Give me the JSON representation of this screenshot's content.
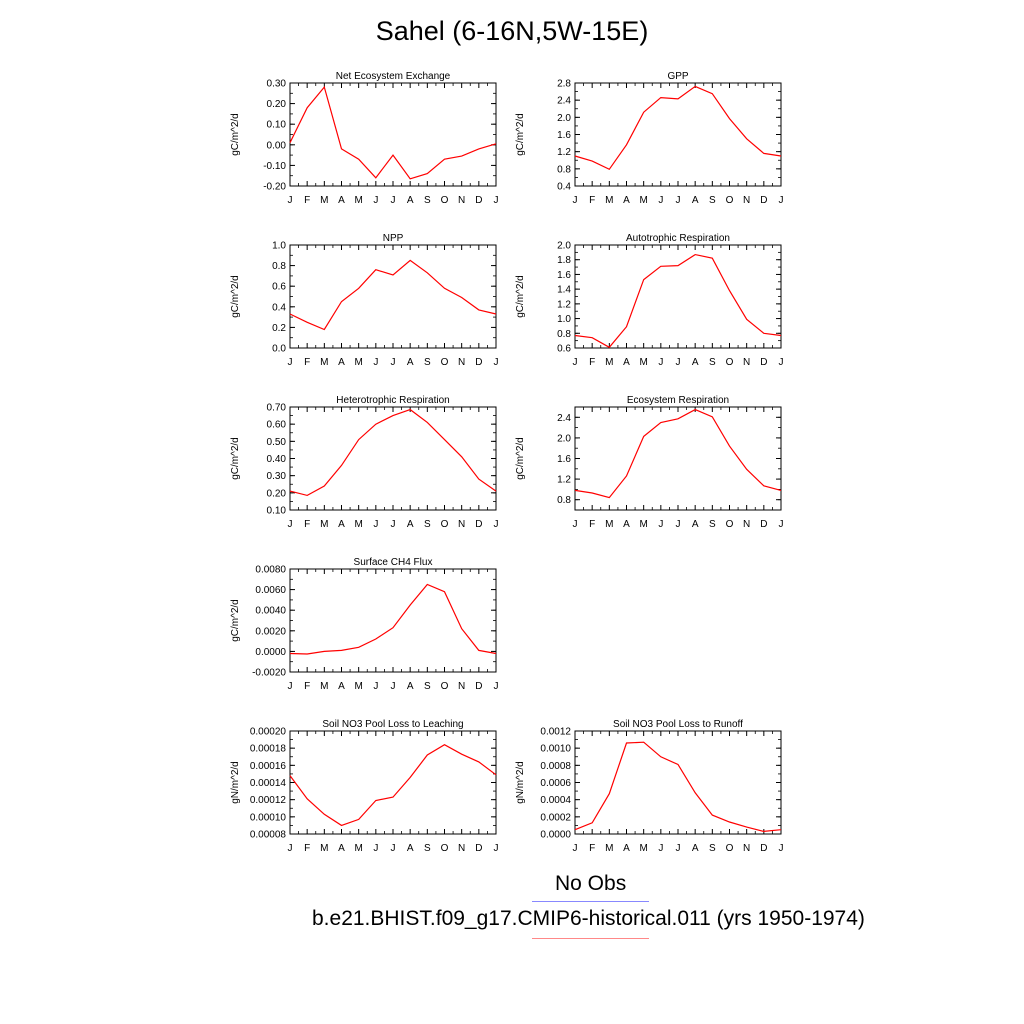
{
  "title": "Sahel (6-16N,5W-15E)",
  "months": [
    "J",
    "F",
    "M",
    "A",
    "M",
    "J",
    "J",
    "A",
    "S",
    "O",
    "N",
    "D",
    "J"
  ],
  "line_color": "#ff0000",
  "chart_data": [
    {
      "type": "line",
      "title": "Net Ecosystem Exchange",
      "ylabel": "gC/m^2/d",
      "ylim": [
        -0.2,
        0.3
      ],
      "yticks": [
        "0.30",
        "0.20",
        "0.10",
        "0.00",
        "-0.10",
        "-0.20"
      ],
      "ytick_values": [
        0.3,
        0.2,
        0.1,
        0.0,
        -0.1,
        -0.2
      ],
      "values": [
        0.01,
        0.18,
        0.28,
        -0.02,
        -0.07,
        -0.16,
        -0.05,
        -0.165,
        -0.14,
        -0.07,
        -0.055,
        -0.02,
        0.005
      ]
    },
    {
      "type": "line",
      "title": "GPP",
      "ylabel": "gC/m^2/d",
      "ylim": [
        0.4,
        2.8
      ],
      "yticks": [
        "2.8",
        "2.4",
        "2.0",
        "1.6",
        "1.2",
        "0.8",
        "0.4"
      ],
      "ytick_values": [
        2.8,
        2.4,
        2.0,
        1.6,
        1.2,
        0.8,
        0.4
      ],
      "values": [
        1.1,
        0.98,
        0.79,
        1.36,
        2.12,
        2.46,
        2.43,
        2.72,
        2.55,
        1.97,
        1.5,
        1.16,
        1.1
      ]
    },
    {
      "type": "line",
      "title": "NPP",
      "ylabel": "gC/m^2/d",
      "ylim": [
        0.0,
        1.0
      ],
      "yticks": [
        "1.0",
        "0.8",
        "0.6",
        "0.4",
        "0.2",
        "0.0"
      ],
      "ytick_values": [
        1.0,
        0.8,
        0.6,
        0.4,
        0.2,
        0.0
      ],
      "values": [
        0.33,
        0.25,
        0.18,
        0.45,
        0.58,
        0.76,
        0.71,
        0.85,
        0.73,
        0.58,
        0.49,
        0.37,
        0.33
      ]
    },
    {
      "type": "line",
      "title": "Autotrophic Respiration",
      "ylabel": "gC/m^2/d",
      "ylim": [
        0.6,
        2.0
      ],
      "yticks": [
        "2.0",
        "1.8",
        "1.6",
        "1.4",
        "1.2",
        "1.0",
        "0.8",
        "0.6"
      ],
      "ytick_values": [
        2.0,
        1.8,
        1.6,
        1.4,
        1.2,
        1.0,
        0.8,
        0.6
      ],
      "values": [
        0.77,
        0.74,
        0.61,
        0.89,
        1.53,
        1.71,
        1.72,
        1.87,
        1.82,
        1.38,
        0.99,
        0.8,
        0.77
      ]
    },
    {
      "type": "line",
      "title": "Heterotrophic Respiration",
      "ylabel": "gC/m^2/d",
      "ylim": [
        0.1,
        0.7
      ],
      "yticks": [
        "0.70",
        "0.60",
        "0.50",
        "0.40",
        "0.30",
        "0.20",
        "0.10"
      ],
      "ytick_values": [
        0.7,
        0.6,
        0.5,
        0.4,
        0.3,
        0.2,
        0.1
      ],
      "values": [
        0.21,
        0.185,
        0.24,
        0.36,
        0.51,
        0.6,
        0.65,
        0.685,
        0.61,
        0.51,
        0.41,
        0.28,
        0.21
      ]
    },
    {
      "type": "line",
      "title": "Ecosystem Respiration",
      "ylabel": "gC/m^2/d",
      "ylim": [
        0.6,
        2.6
      ],
      "yticks": [
        "2.4",
        "2.0",
        "1.6",
        "1.2",
        "0.8"
      ],
      "ytick_values": [
        2.4,
        2.0,
        1.6,
        1.2,
        0.8
      ],
      "values": [
        0.98,
        0.93,
        0.84,
        1.26,
        2.03,
        2.3,
        2.37,
        2.55,
        2.41,
        1.84,
        1.39,
        1.07,
        0.98
      ]
    },
    {
      "type": "line",
      "title": "Surface CH4 Flux",
      "ylabel": "gC/m^2/d",
      "ylim": [
        -0.002,
        0.008
      ],
      "yticks": [
        "0.0080",
        "0.0060",
        "0.0040",
        "0.0020",
        "0.0000",
        "-0.0020"
      ],
      "ytick_values": [
        0.008,
        0.006,
        0.004,
        0.002,
        0.0,
        -0.002
      ],
      "values": [
        -0.0002,
        -0.00025,
        0.0,
        0.0001,
        0.0004,
        0.0012,
        0.0023,
        0.0045,
        0.0065,
        0.0058,
        0.0022,
        0.0001,
        -0.0002
      ]
    },
    {
      "type": "line",
      "title": "Soil NO3 Pool Loss to Leaching",
      "ylabel": "gN/m^2/d",
      "ylim": [
        8e-05,
        0.0002
      ],
      "yticks": [
        "0.00020",
        "0.00018",
        "0.00016",
        "0.00014",
        "0.00012",
        "0.00010",
        "0.00008"
      ],
      "ytick_values": [
        0.0002,
        0.00018,
        0.00016,
        0.00014,
        0.00012,
        0.0001,
        8e-05
      ],
      "values": [
        0.000148,
        0.000121,
        0.000103,
        9e-05,
        9.7e-05,
        0.000119,
        0.000123,
        0.000146,
        0.000172,
        0.000184,
        0.000173,
        0.000164,
        0.000149
      ]
    },
    {
      "type": "line",
      "title": "Soil NO3 Pool Loss to Runoff",
      "ylabel": "gN/m^2/d",
      "ylim": [
        0.0,
        0.0012
      ],
      "yticks": [
        "0.0012",
        "0.0010",
        "0.0008",
        "0.0006",
        "0.0004",
        "0.0002",
        "0.0000"
      ],
      "ytick_values": [
        0.0012,
        0.001,
        0.0008,
        0.0006,
        0.0004,
        0.0002,
        0.0
      ],
      "values": [
        5e-05,
        0.00013,
        0.00047,
        0.00106,
        0.00107,
        0.0009,
        0.00081,
        0.00048,
        0.00022,
        0.00014,
        8e-05,
        3e-05,
        5e-05
      ]
    }
  ],
  "legend": {
    "no_obs_label": "No Obs",
    "no_obs_color": "#8888ff",
    "case_label": "b.e21.BHIST.f09_g17.CMIP6-historical.011 (yrs 1950-1974)",
    "case_color": "#ff8888"
  }
}
